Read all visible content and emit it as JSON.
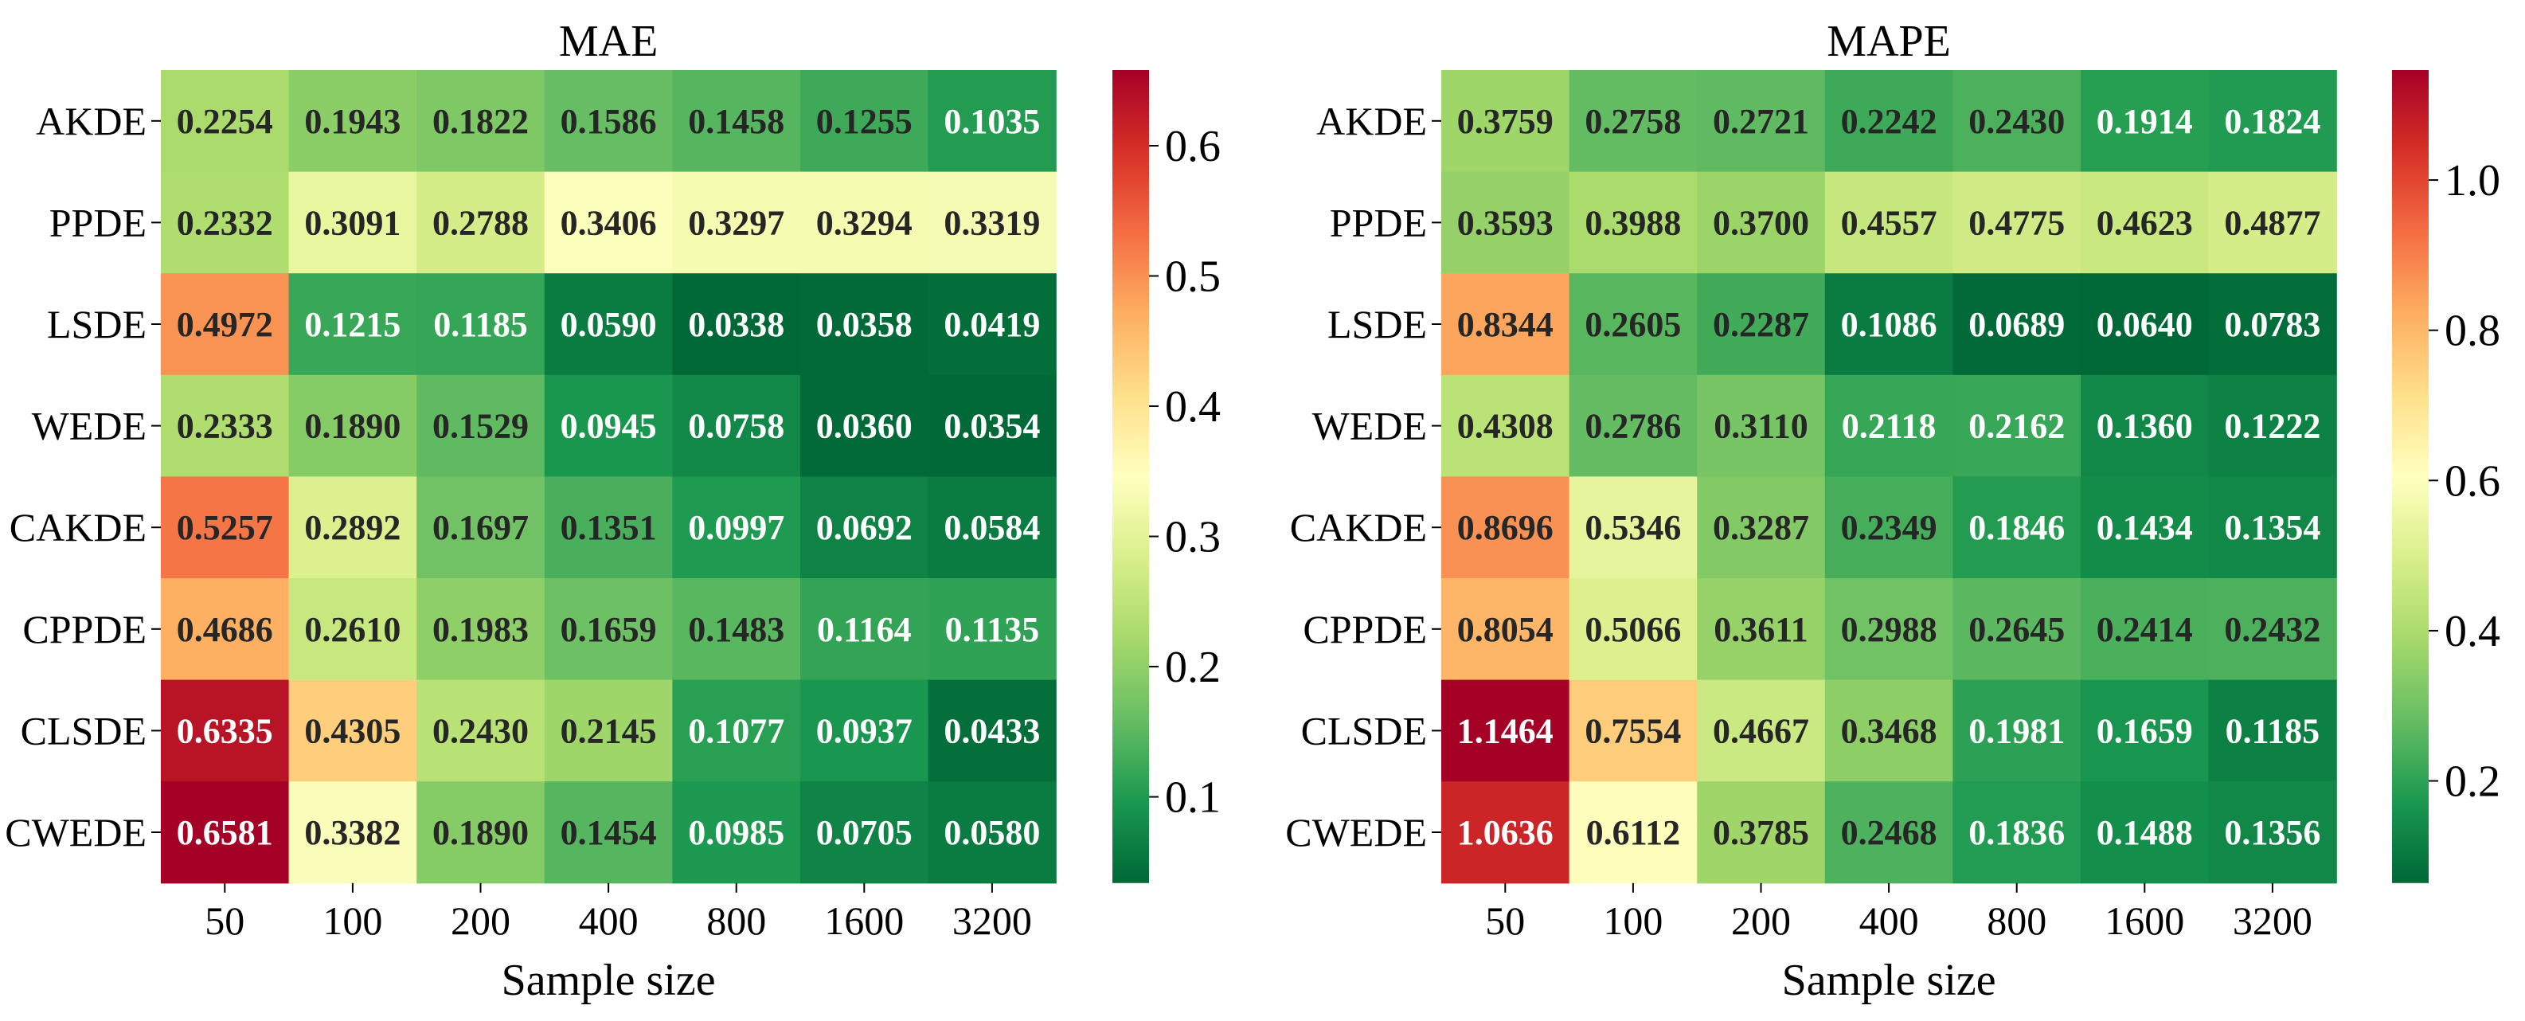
{
  "chart_data": [
    {
      "type": "heatmap",
      "title": "MAE",
      "xlabel": "Sample size",
      "ylabel": "",
      "x_categories": [
        "50",
        "100",
        "200",
        "400",
        "800",
        "1600",
        "3200"
      ],
      "y_categories": [
        "AKDE",
        "PPDE",
        "LSDE",
        "WEDE",
        "CAKDE",
        "CPPDE",
        "CLSDE",
        "CWEDE"
      ],
      "values": [
        [
          "0.2254",
          "0.1943",
          "0.1822",
          "0.1586",
          "0.1458",
          "0.1255",
          "0.1035"
        ],
        [
          "0.2332",
          "0.3091",
          "0.2788",
          "0.3406",
          "0.3297",
          "0.3294",
          "0.3319"
        ],
        [
          "0.4972",
          "0.1215",
          "0.1185",
          "0.0590",
          "0.0338",
          "0.0358",
          "0.0419"
        ],
        [
          "0.2333",
          "0.1890",
          "0.1529",
          "0.0945",
          "0.0758",
          "0.0360",
          "0.0354"
        ],
        [
          "0.5257",
          "0.2892",
          "0.1697",
          "0.1351",
          "0.0997",
          "0.0692",
          "0.0584"
        ],
        [
          "0.4686",
          "0.2610",
          "0.1983",
          "0.1659",
          "0.1483",
          "0.1164",
          "0.1135"
        ],
        [
          "0.6335",
          "0.4305",
          "0.2430",
          "0.2145",
          "0.1077",
          "0.0937",
          "0.0433"
        ],
        [
          "0.6581",
          "0.3382",
          "0.1890",
          "0.1454",
          "0.0985",
          "0.0705",
          "0.0580"
        ]
      ],
      "colorbar": {
        "colormap": "RdYlGn_r",
        "vmin": 0.0338,
        "vmax": 0.6581,
        "ticks": [
          0.1,
          0.2,
          0.3,
          0.4,
          0.5,
          0.6
        ],
        "tick_labels": [
          "0.1",
          "0.2",
          "0.3",
          "0.4",
          "0.5",
          "0.6"
        ]
      }
    },
    {
      "type": "heatmap",
      "title": "MAPE",
      "xlabel": "Sample size",
      "ylabel": "",
      "x_categories": [
        "50",
        "100",
        "200",
        "400",
        "800",
        "1600",
        "3200"
      ],
      "y_categories": [
        "AKDE",
        "PPDE",
        "LSDE",
        "WEDE",
        "CAKDE",
        "CPPDE",
        "CLSDE",
        "CWEDE"
      ],
      "values": [
        [
          "0.3759",
          "0.2758",
          "0.2721",
          "0.2242",
          "0.2430",
          "0.1914",
          "0.1824"
        ],
        [
          "0.3593",
          "0.3988",
          "0.3700",
          "0.4557",
          "0.4775",
          "0.4623",
          "0.4877"
        ],
        [
          "0.8344",
          "0.2605",
          "0.2287",
          "0.1086",
          "0.0689",
          "0.0640",
          "0.0783"
        ],
        [
          "0.4308",
          "0.2786",
          "0.3110",
          "0.2118",
          "0.2162",
          "0.1360",
          "0.1222"
        ],
        [
          "0.8696",
          "0.5346",
          "0.3287",
          "0.2349",
          "0.1846",
          "0.1434",
          "0.1354"
        ],
        [
          "0.8054",
          "0.5066",
          "0.3611",
          "0.2988",
          "0.2645",
          "0.2414",
          "0.2432"
        ],
        [
          "1.1464",
          "0.7554",
          "0.4667",
          "0.3468",
          "0.1981",
          "0.1659",
          "0.1185"
        ],
        [
          "1.0636",
          "0.6112",
          "0.3785",
          "0.2468",
          "0.1836",
          "0.1488",
          "0.1356"
        ]
      ],
      "colorbar": {
        "colormap": "RdYlGn_r",
        "vmin": 0.064,
        "vmax": 1.1464,
        "ticks": [
          0.2,
          0.4,
          0.6,
          0.8,
          1.0
        ],
        "tick_labels": [
          "0.2",
          "0.4",
          "0.6",
          "0.8",
          "1.0"
        ]
      }
    }
  ]
}
